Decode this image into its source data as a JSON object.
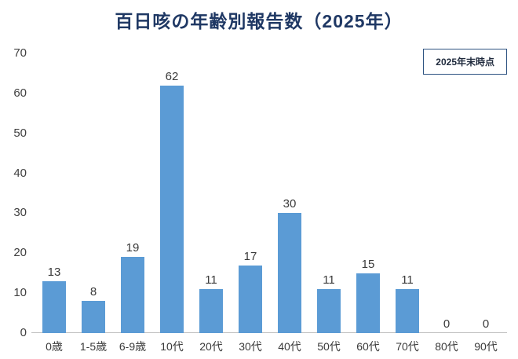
{
  "chart_data": {
    "type": "bar",
    "title": "百日咳の年齢別報告数（2025年）",
    "annotation": "2025年末時点",
    "categories": [
      "0歳",
      "1-5歳",
      "6-9歳",
      "10代",
      "20代",
      "30代",
      "40代",
      "50代",
      "60代",
      "70代",
      "80代",
      "90代"
    ],
    "values": [
      13,
      8,
      19,
      62,
      11,
      17,
      30,
      11,
      15,
      11,
      0,
      0
    ],
    "xlabel": "",
    "ylabel": "",
    "ylim": [
      0,
      70
    ],
    "ytick_step": 10,
    "grid": false,
    "legend_position": "none",
    "bar_color": "#5B9BD5",
    "title_color": "#1F3864",
    "axis_line_color": "#bfbfbf"
  }
}
